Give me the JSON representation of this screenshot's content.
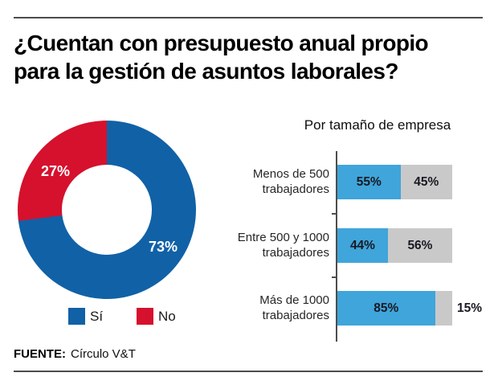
{
  "page": {
    "title_line1": "¿Cuentan con presupuesto anual propio",
    "title_line2": "para la gestión de asuntos laborales?",
    "source_label": "FUENTE:",
    "source_value": "Círculo V&T"
  },
  "colors": {
    "donut_yes": "#1161a7",
    "donut_no": "#d5112d",
    "bar_yes": "#3fa5da",
    "bar_no": "#c9c9c9",
    "rule": "#4c4c4c"
  },
  "legend": {
    "yes": "Sí",
    "no": "No"
  },
  "donut_labels": {
    "yes": "73%",
    "no": "27%"
  },
  "bars": {
    "title": "Por tamaño de empresa",
    "rows": [
      {
        "label_line1": "Menos de 500",
        "label_line2": "trabajadores",
        "si": 55,
        "no": 45,
        "si_label": "55%",
        "no_label": "45%"
      },
      {
        "label_line1": "Entre 500 y 1000",
        "label_line2": "trabajadores",
        "si": 44,
        "no": 56,
        "si_label": "44%",
        "no_label": "56%"
      },
      {
        "label_line1": "Más de 1000",
        "label_line2": "trabajadores",
        "si": 85,
        "no": 15,
        "si_label": "85%",
        "no_label": "15%"
      }
    ]
  },
  "chart_data": [
    {
      "type": "pie",
      "subtype": "donut",
      "labels": [
        "Sí",
        "No"
      ],
      "values": [
        73,
        27
      ],
      "value_labels": [
        "73%",
        "27%"
      ],
      "colors": [
        "#1161a7",
        "#d5112d"
      ],
      "legend_position": "bottom",
      "start_angle_deg": 0,
      "direction": "clockwise"
    },
    {
      "type": "bar",
      "subtype": "stacked-horizontal",
      "title": "Por tamaño de empresa",
      "categories": [
        "Menos de 500 trabajadores",
        "Entre 500 y 1000 trabajadores",
        "Más de 1000 trabajadores"
      ],
      "series": [
        {
          "name": "Sí",
          "color": "#3fa5da",
          "values": [
            55,
            44,
            85
          ]
        },
        {
          "name": "No",
          "color": "#c9c9c9",
          "values": [
            45,
            56,
            15
          ]
        }
      ],
      "xlim": [
        0,
        100
      ],
      "value_label_format": "percent",
      "grid": false,
      "note": "15% label of last row drawn outside the bar"
    }
  ]
}
